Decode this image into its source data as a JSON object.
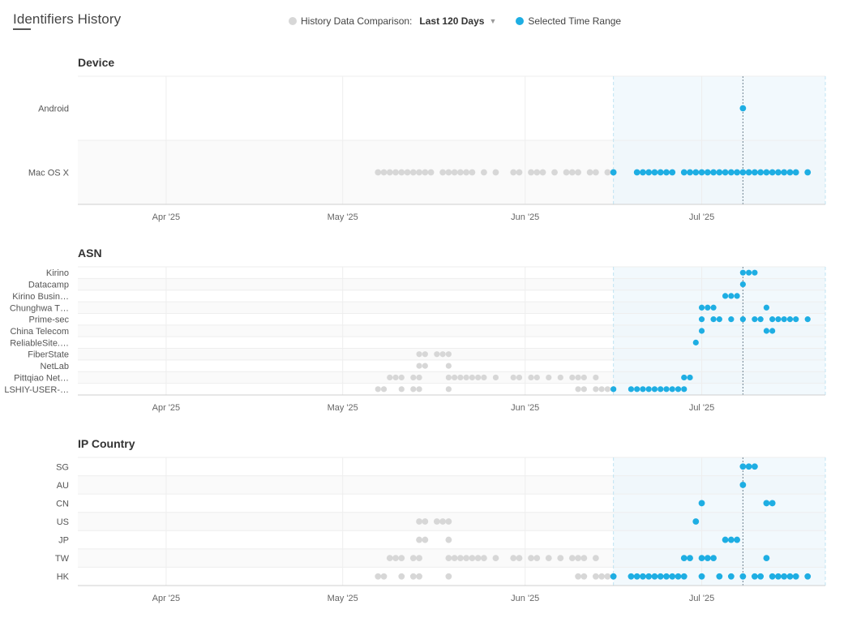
{
  "header": {
    "title": "Identifiers History",
    "legend_history_label": "History Data Comparison:",
    "legend_range_value": "Last 120 Days",
    "legend_selected_label": "Selected Time Range"
  },
  "colors": {
    "history": "#d7d7d7",
    "selected": "#1eaee3",
    "marker": "#6d8290"
  },
  "chart_data": [
    {
      "type": "scatter",
      "title": "Device",
      "x_axis": "date",
      "xlim": [
        "2025-03-17",
        "2025-07-22"
      ],
      "x_ticks": [
        {
          "label": "Apr '25",
          "date": "2025-04-01"
        },
        {
          "label": "May '25",
          "date": "2025-05-01"
        },
        {
          "label": "Jun '25",
          "date": "2025-06-01"
        },
        {
          "label": "Jul '25",
          "date": "2025-07-01"
        }
      ],
      "selected_range": [
        "2025-06-16",
        "2025-07-22"
      ],
      "marker_date": "2025-07-08",
      "categories": [
        "Android",
        "Mac OS X"
      ],
      "series": [
        {
          "name": "History Data Comparison",
          "points": [
            [
              "Mac OS X",
              [
                "2025-05-07",
                "2025-05-08",
                "2025-05-09",
                "2025-05-10",
                "2025-05-11",
                "2025-05-12",
                "2025-05-13",
                "2025-05-14",
                "2025-05-15",
                "2025-05-16",
                "2025-05-18",
                "2025-05-19",
                "2025-05-20",
                "2025-05-21",
                "2025-05-22",
                "2025-05-23",
                "2025-05-25",
                "2025-05-27",
                "2025-05-30",
                "2025-05-31",
                "2025-06-02",
                "2025-06-03",
                "2025-06-04",
                "2025-06-06",
                "2025-06-08",
                "2025-06-09",
                "2025-06-10",
                "2025-06-12",
                "2025-06-13",
                "2025-06-15",
                "2025-06-16"
              ]
            ]
          ]
        },
        {
          "name": "Selected Time Range",
          "points": [
            [
              "Android",
              [
                "2025-07-08"
              ]
            ],
            [
              "Mac OS X",
              [
                "2025-06-16",
                "2025-06-20",
                "2025-06-21",
                "2025-06-22",
                "2025-06-23",
                "2025-06-24",
                "2025-06-25",
                "2025-06-26",
                "2025-06-28",
                "2025-06-29",
                "2025-06-30",
                "2025-07-01",
                "2025-07-02",
                "2025-07-03",
                "2025-07-04",
                "2025-07-05",
                "2025-07-06",
                "2025-07-07",
                "2025-07-08",
                "2025-07-09",
                "2025-07-10",
                "2025-07-11",
                "2025-07-12",
                "2025-07-13",
                "2025-07-14",
                "2025-07-15",
                "2025-07-16",
                "2025-07-17",
                "2025-07-19"
              ]
            ]
          ]
        }
      ]
    },
    {
      "type": "scatter",
      "title": "ASN",
      "x_axis": "date",
      "xlim": [
        "2025-03-17",
        "2025-07-22"
      ],
      "x_ticks": [
        {
          "label": "Apr '25",
          "date": "2025-04-01"
        },
        {
          "label": "May '25",
          "date": "2025-05-01"
        },
        {
          "label": "Jun '25",
          "date": "2025-06-01"
        },
        {
          "label": "Jul '25",
          "date": "2025-07-01"
        }
      ],
      "selected_range": [
        "2025-06-16",
        "2025-07-22"
      ],
      "marker_date": "2025-07-08",
      "categories": [
        "Kirino",
        "Datacamp",
        "Kirino Busin…",
        "Chunghwa T…",
        "Prime-sec",
        "China Telecom",
        "ReliableSite.…",
        "FiberState",
        "NetLab",
        "Pittqiao Net…",
        "LSHIY-USER-…"
      ],
      "series": [
        {
          "name": "History Data Comparison",
          "points": [
            [
              "FiberState",
              [
                "2025-05-14",
                "2025-05-15",
                "2025-05-17",
                "2025-05-18",
                "2025-05-19"
              ]
            ],
            [
              "NetLab",
              [
                "2025-05-14",
                "2025-05-15",
                "2025-05-19"
              ]
            ],
            [
              "Pittqiao Net…",
              [
                "2025-05-09",
                "2025-05-10",
                "2025-05-11",
                "2025-05-13",
                "2025-05-14",
                "2025-05-19",
                "2025-05-20",
                "2025-05-21",
                "2025-05-22",
                "2025-05-23",
                "2025-05-24",
                "2025-05-25",
                "2025-05-27",
                "2025-05-30",
                "2025-05-31",
                "2025-06-02",
                "2025-06-03",
                "2025-06-05",
                "2025-06-07",
                "2025-06-09",
                "2025-06-10",
                "2025-06-11",
                "2025-06-13"
              ]
            ],
            [
              "LSHIY-USER-…",
              [
                "2025-05-07",
                "2025-05-08",
                "2025-05-11",
                "2025-05-13",
                "2025-05-14",
                "2025-05-19",
                "2025-06-10",
                "2025-06-11",
                "2025-06-13",
                "2025-06-14",
                "2025-06-15",
                "2025-06-16"
              ]
            ]
          ]
        },
        {
          "name": "Selected Time Range",
          "points": [
            [
              "Kirino",
              [
                "2025-07-08",
                "2025-07-09",
                "2025-07-10"
              ]
            ],
            [
              "Datacamp",
              [
                "2025-07-08"
              ]
            ],
            [
              "Kirino Busin…",
              [
                "2025-07-05",
                "2025-07-06",
                "2025-07-07"
              ]
            ],
            [
              "Chunghwa T…",
              [
                "2025-07-01",
                "2025-07-02",
                "2025-07-03",
                "2025-07-12"
              ]
            ],
            [
              "Prime-sec",
              [
                "2025-07-01",
                "2025-07-03",
                "2025-07-04",
                "2025-07-06",
                "2025-07-08",
                "2025-07-10",
                "2025-07-11",
                "2025-07-13",
                "2025-07-14",
                "2025-07-15",
                "2025-07-16",
                "2025-07-17",
                "2025-07-19"
              ]
            ],
            [
              "China Telecom",
              [
                "2025-07-01",
                "2025-07-12",
                "2025-07-13"
              ]
            ],
            [
              "ReliableSite.…",
              [
                "2025-06-30"
              ]
            ],
            [
              "Pittqiao Net…",
              [
                "2025-06-28",
                "2025-06-29"
              ]
            ],
            [
              "LSHIY-USER-…",
              [
                "2025-06-16",
                "2025-06-19",
                "2025-06-20",
                "2025-06-21",
                "2025-06-22",
                "2025-06-23",
                "2025-06-24",
                "2025-06-25",
                "2025-06-26",
                "2025-06-27",
                "2025-06-28"
              ]
            ]
          ]
        }
      ]
    },
    {
      "type": "scatter",
      "title": "IP Country",
      "x_axis": "date",
      "xlim": [
        "2025-03-17",
        "2025-07-22"
      ],
      "x_ticks": [
        {
          "label": "Apr '25",
          "date": "2025-04-01"
        },
        {
          "label": "May '25",
          "date": "2025-05-01"
        },
        {
          "label": "Jun '25",
          "date": "2025-06-01"
        },
        {
          "label": "Jul '25",
          "date": "2025-07-01"
        }
      ],
      "selected_range": [
        "2025-06-16",
        "2025-07-22"
      ],
      "marker_date": "2025-07-08",
      "categories": [
        "SG",
        "AU",
        "CN",
        "US",
        "JP",
        "TW",
        "HK"
      ],
      "series": [
        {
          "name": "History Data Comparison",
          "points": [
            [
              "US",
              [
                "2025-05-14",
                "2025-05-15",
                "2025-05-17",
                "2025-05-18",
                "2025-05-19"
              ]
            ],
            [
              "JP",
              [
                "2025-05-14",
                "2025-05-15",
                "2025-05-19"
              ]
            ],
            [
              "TW",
              [
                "2025-05-09",
                "2025-05-10",
                "2025-05-11",
                "2025-05-13",
                "2025-05-14",
                "2025-05-19",
                "2025-05-20",
                "2025-05-21",
                "2025-05-22",
                "2025-05-23",
                "2025-05-24",
                "2025-05-25",
                "2025-05-27",
                "2025-05-30",
                "2025-05-31",
                "2025-06-02",
                "2025-06-03",
                "2025-06-05",
                "2025-06-07",
                "2025-06-09",
                "2025-06-10",
                "2025-06-11",
                "2025-06-13"
              ]
            ],
            [
              "HK",
              [
                "2025-05-07",
                "2025-05-08",
                "2025-05-11",
                "2025-05-13",
                "2025-05-14",
                "2025-05-19",
                "2025-06-10",
                "2025-06-11",
                "2025-06-13",
                "2025-06-14",
                "2025-06-15",
                "2025-06-16"
              ]
            ]
          ]
        },
        {
          "name": "Selected Time Range",
          "points": [
            [
              "SG",
              [
                "2025-07-08",
                "2025-07-09",
                "2025-07-10"
              ]
            ],
            [
              "AU",
              [
                "2025-07-08"
              ]
            ],
            [
              "CN",
              [
                "2025-07-01",
                "2025-07-12",
                "2025-07-13"
              ]
            ],
            [
              "US",
              [
                "2025-06-30"
              ]
            ],
            [
              "JP",
              [
                "2025-07-05",
                "2025-07-06",
                "2025-07-07"
              ]
            ],
            [
              "TW",
              [
                "2025-06-28",
                "2025-06-29",
                "2025-07-01",
                "2025-07-02",
                "2025-07-03",
                "2025-07-12"
              ]
            ],
            [
              "HK",
              [
                "2025-06-16",
                "2025-06-19",
                "2025-06-20",
                "2025-06-21",
                "2025-06-22",
                "2025-06-23",
                "2025-06-24",
                "2025-06-25",
                "2025-06-26",
                "2025-06-27",
                "2025-06-28",
                "2025-07-01",
                "2025-07-04",
                "2025-07-06",
                "2025-07-08",
                "2025-07-10",
                "2025-07-11",
                "2025-07-13",
                "2025-07-14",
                "2025-07-15",
                "2025-07-16",
                "2025-07-17",
                "2025-07-19"
              ]
            ]
          ]
        }
      ]
    }
  ]
}
